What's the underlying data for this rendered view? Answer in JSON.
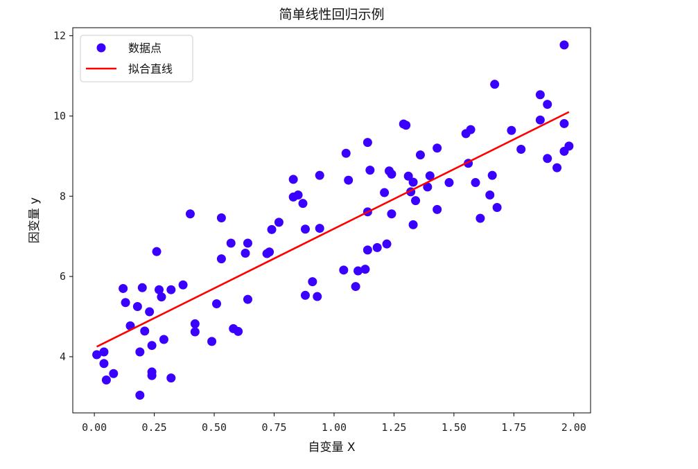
{
  "chart_data": {
    "type": "scatter",
    "title": "简单线性回归示例",
    "xlabel": "自变量 X",
    "ylabel": "因变量 y",
    "xlim": [
      -0.09,
      2.07
    ],
    "ylim": [
      2.6,
      12.2
    ],
    "xticks": [
      "0.00",
      "0.25",
      "0.50",
      "0.75",
      "1.00",
      "1.25",
      "1.50",
      "1.75",
      "2.00"
    ],
    "yticks": [
      "4",
      "6",
      "8",
      "10",
      "12"
    ],
    "grid": false,
    "legend_position": "top-left",
    "series": [
      {
        "name": "数据点",
        "kind": "scatter",
        "color": "#3a00ff",
        "points": [
          [
            0.01,
            4.05
          ],
          [
            0.04,
            4.12
          ],
          [
            0.04,
            3.83
          ],
          [
            0.05,
            3.42
          ],
          [
            0.08,
            3.58
          ],
          [
            0.12,
            5.7
          ],
          [
            0.13,
            5.35
          ],
          [
            0.15,
            4.77
          ],
          [
            0.18,
            5.25
          ],
          [
            0.19,
            3.04
          ],
          [
            0.19,
            4.12
          ],
          [
            0.2,
            5.72
          ],
          [
            0.21,
            4.64
          ],
          [
            0.23,
            5.12
          ],
          [
            0.24,
            4.28
          ],
          [
            0.24,
            3.62
          ],
          [
            0.24,
            3.53
          ],
          [
            0.26,
            6.62
          ],
          [
            0.27,
            5.67
          ],
          [
            0.28,
            5.49
          ],
          [
            0.29,
            4.43
          ],
          [
            0.32,
            3.47
          ],
          [
            0.32,
            5.67
          ],
          [
            0.37,
            5.79
          ],
          [
            0.4,
            7.56
          ],
          [
            0.42,
            4.82
          ],
          [
            0.42,
            4.62
          ],
          [
            0.49,
            4.38
          ],
          [
            0.51,
            5.32
          ],
          [
            0.53,
            7.46
          ],
          [
            0.53,
            6.44
          ],
          [
            0.57,
            6.83
          ],
          [
            0.58,
            4.7
          ],
          [
            0.6,
            4.63
          ],
          [
            0.63,
            6.58
          ],
          [
            0.64,
            6.83
          ],
          [
            0.64,
            5.43
          ],
          [
            0.72,
            6.57
          ],
          [
            0.73,
            6.61
          ],
          [
            0.74,
            7.17
          ],
          [
            0.77,
            7.35
          ],
          [
            0.83,
            8.42
          ],
          [
            0.83,
            7.98
          ],
          [
            0.85,
            8.03
          ],
          [
            0.87,
            7.82
          ],
          [
            0.88,
            7.18
          ],
          [
            0.88,
            5.53
          ],
          [
            0.91,
            5.87
          ],
          [
            0.93,
            5.5
          ],
          [
            0.94,
            7.2
          ],
          [
            0.94,
            8.52
          ],
          [
            1.04,
            6.16
          ],
          [
            1.05,
            9.07
          ],
          [
            1.06,
            8.4
          ],
          [
            1.09,
            5.75
          ],
          [
            1.1,
            6.14
          ],
          [
            1.13,
            6.18
          ],
          [
            1.14,
            9.34
          ],
          [
            1.14,
            7.61
          ],
          [
            1.14,
            6.66
          ],
          [
            1.15,
            8.65
          ],
          [
            1.18,
            6.72
          ],
          [
            1.21,
            8.09
          ],
          [
            1.22,
            6.81
          ],
          [
            1.23,
            8.63
          ],
          [
            1.24,
            7.56
          ],
          [
            1.24,
            8.55
          ],
          [
            1.29,
            9.8
          ],
          [
            1.3,
            9.77
          ],
          [
            1.31,
            8.5
          ],
          [
            1.32,
            8.11
          ],
          [
            1.33,
            7.29
          ],
          [
            1.33,
            8.35
          ],
          [
            1.34,
            7.89
          ],
          [
            1.36,
            9.03
          ],
          [
            1.39,
            8.23
          ],
          [
            1.4,
            8.51
          ],
          [
            1.43,
            9.2
          ],
          [
            1.43,
            7.67
          ],
          [
            1.48,
            8.34
          ],
          [
            1.55,
            9.56
          ],
          [
            1.56,
            8.82
          ],
          [
            1.57,
            9.66
          ],
          [
            1.59,
            8.34
          ],
          [
            1.61,
            7.45
          ],
          [
            1.65,
            8.03
          ],
          [
            1.66,
            8.52
          ],
          [
            1.67,
            10.79
          ],
          [
            1.68,
            7.72
          ],
          [
            1.74,
            9.64
          ],
          [
            1.78,
            9.17
          ],
          [
            1.86,
            10.53
          ],
          [
            1.86,
            9.9
          ],
          [
            1.89,
            10.29
          ],
          [
            1.89,
            8.94
          ],
          [
            1.93,
            8.71
          ],
          [
            1.96,
            11.77
          ],
          [
            1.96,
            9.81
          ],
          [
            1.96,
            9.12
          ],
          [
            1.98,
            9.25
          ]
        ]
      },
      {
        "name": "拟合直线",
        "kind": "line",
        "color": "#ff0000",
        "points": [
          [
            0.01,
            4.25
          ],
          [
            1.98,
            10.1
          ]
        ]
      }
    ]
  }
}
